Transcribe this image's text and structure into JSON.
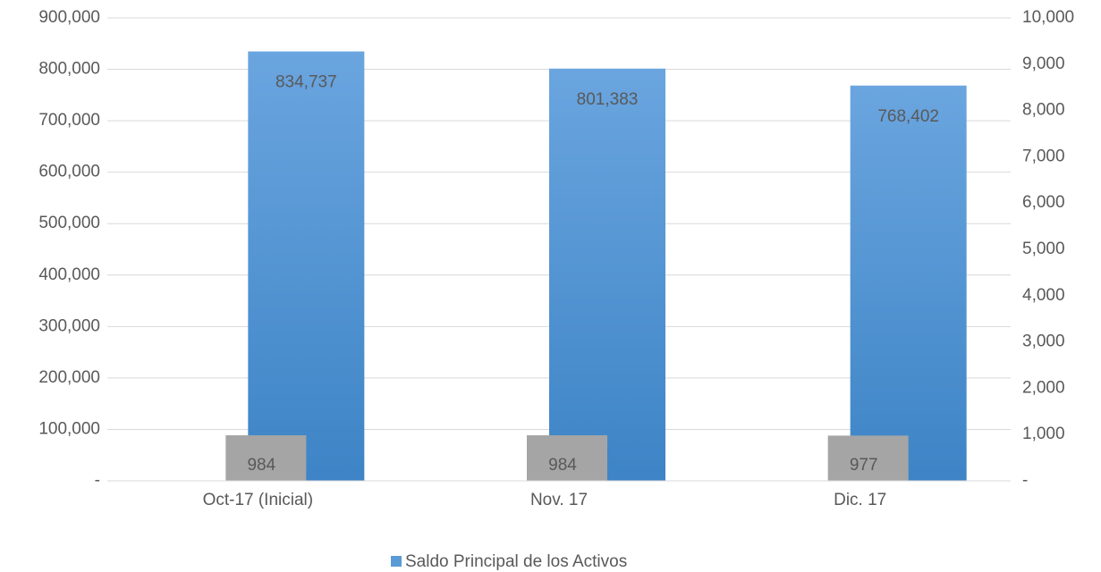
{
  "chart_data": {
    "type": "bar",
    "categories": [
      "Oct-17 (Inicial)",
      "Nov. 17",
      "Dic. 17"
    ],
    "series": [
      {
        "name": "Saldo Principal de los Activos",
        "color": "#5b9bd5",
        "values": [
          834737,
          801383,
          768402
        ],
        "value_labels": [
          "834,737",
          "801,383",
          "768,402"
        ]
      },
      {
        "color": "#a5a5a5",
        "axis": "y2",
        "values": [
          984,
          984,
          977
        ]
      }
    ],
    "ylim": [
      0,
      900000
    ],
    "yticks": [
      {
        "value": 0,
        "label": "-"
      },
      {
        "value": 100000,
        "label": "100,000"
      },
      {
        "value": 200000,
        "label": "200,000"
      },
      {
        "value": 300000,
        "label": "300,000"
      },
      {
        "value": 400000,
        "label": "400,000"
      },
      {
        "value": 500000,
        "label": "500,000"
      },
      {
        "value": 600000,
        "label": "600,000"
      },
      {
        "value": 700000,
        "label": "700,000"
      },
      {
        "value": 800000,
        "label": "800,000"
      },
      {
        "value": 900000,
        "label": "900,000"
      }
    ],
    "y2lim": [
      0,
      10000
    ],
    "y2ticks": [
      {
        "value": 0,
        "label": "-"
      },
      {
        "value": 1000,
        "label": "1,000"
      },
      {
        "value": 2000,
        "label": "2,000"
      },
      {
        "value": 3000,
        "label": "3,000"
      },
      {
        "value": 4000,
        "label": "4,000"
      },
      {
        "value": 5000,
        "label": "5,000"
      },
      {
        "value": 6000,
        "label": "6,000"
      },
      {
        "value": 7000,
        "label": "7,000"
      },
      {
        "value": 8000,
        "label": "8,000"
      },
      {
        "value": 9000,
        "label": "9,000"
      },
      {
        "value": 10000,
        "label": "10,000"
      }
    ],
    "grid": true,
    "legend": "bottom"
  }
}
